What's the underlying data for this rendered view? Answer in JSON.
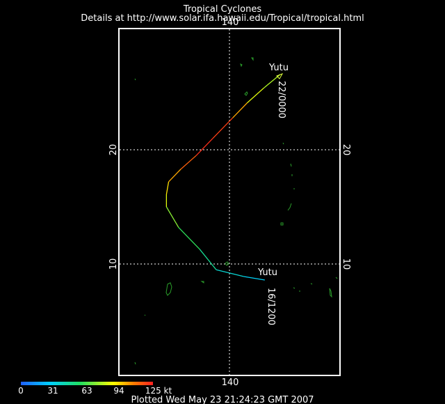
{
  "header": {
    "title": "Tropical Cyclones",
    "subtitle": "Details at http://www.solar.ifa.hawaii.edu/Tropical/tropical.html"
  },
  "axes": {
    "lon_label": "140",
    "lat_labels": [
      "20",
      "10"
    ]
  },
  "storm": {
    "name": "Yutu",
    "start_label": "16/1200",
    "end_label": "22/0000",
    "track": [
      {
        "lon": 143.2,
        "lat": 8.6,
        "kt": 30
      },
      {
        "lon": 141.3,
        "lat": 8.9,
        "kt": 35
      },
      {
        "lon": 138.8,
        "lat": 9.5,
        "kt": 45
      },
      {
        "lon": 137.3,
        "lat": 11.3,
        "kt": 60
      },
      {
        "lon": 135.4,
        "lat": 13.2,
        "kt": 70
      },
      {
        "lon": 134.3,
        "lat": 15.0,
        "kt": 85
      },
      {
        "lon": 134.3,
        "lat": 16.1,
        "kt": 95
      },
      {
        "lon": 134.5,
        "lat": 17.2,
        "kt": 100
      },
      {
        "lon": 135.6,
        "lat": 18.3,
        "kt": 110
      },
      {
        "lon": 137.0,
        "lat": 19.5,
        "kt": 120
      },
      {
        "lon": 138.5,
        "lat": 21.0,
        "kt": 125
      },
      {
        "lon": 140.3,
        "lat": 22.8,
        "kt": 115
      },
      {
        "lon": 141.6,
        "lat": 24.1,
        "kt": 95
      },
      {
        "lon": 143.1,
        "lat": 25.4,
        "kt": 85
      },
      {
        "lon": 144.6,
        "lat": 26.6,
        "kt": 80
      }
    ]
  },
  "colorbar": {
    "ticks": [
      "0",
      "31",
      "63",
      "94",
      "125 kt"
    ],
    "colors": [
      "#2060ff",
      "#00d0ff",
      "#20e060",
      "#ffff00",
      "#ff8000",
      "#ff2020"
    ]
  },
  "footer": {
    "plotted": "Plotted Wed May 23 21:24:23 GMT 2007"
  },
  "land_color": "#2a9d2a"
}
